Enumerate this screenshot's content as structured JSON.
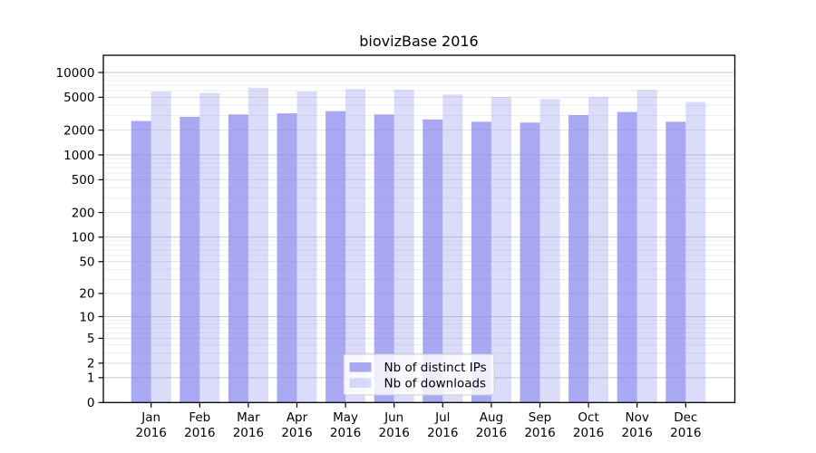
{
  "chart_data": {
    "type": "bar",
    "title": "biovizBase 2016",
    "categories": [
      "Jan",
      "Feb",
      "Mar",
      "Apr",
      "May",
      "Jun",
      "Jul",
      "Aug",
      "Sep",
      "Oct",
      "Nov",
      "Dec"
    ],
    "year_label": "2016",
    "series": [
      {
        "name": "Nb of distinct IPs",
        "color": "#8888ee",
        "alpha": 0.72,
        "values": [
          2580,
          2900,
          3100,
          3200,
          3400,
          3100,
          2700,
          2530,
          2470,
          3050,
          3320,
          2530
        ]
      },
      {
        "name": "Nb of downloads",
        "color": "#8888ee",
        "alpha": 0.3,
        "values": [
          5880,
          5650,
          6500,
          5880,
          6300,
          6200,
          5400,
          5050,
          4770,
          5050,
          6150,
          4390
        ]
      }
    ],
    "y_ticks": [
      0,
      1,
      2,
      5,
      10,
      20,
      50,
      100,
      200,
      500,
      1000,
      2000,
      5000,
      10000
    ],
    "y_scale": "log1p",
    "ylim": [
      0,
      10000
    ],
    "xlabel": "",
    "ylabel": "",
    "grid": "horizontal",
    "grid_major_color": "#c9c9c9",
    "grid_mid_color": "#e2e2e2",
    "grid_minor_color": "#eeeeee",
    "frame_color": "#000000",
    "legend_position": "bottom-center-inside",
    "legend_border_color": "#cccccc",
    "legend_bg_color": "#ffffff"
  }
}
